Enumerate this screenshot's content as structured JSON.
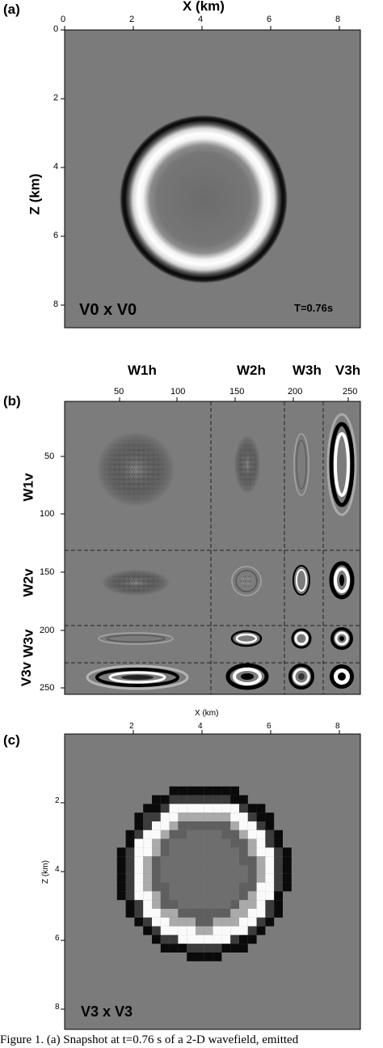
{
  "figure": {
    "panel_a": {
      "label": "(a)",
      "x_title": "X (km)",
      "z_title": "Z (km)",
      "x_ticks": [
        "0",
        "2",
        "4",
        "6",
        "8"
      ],
      "z_ticks": [
        "0",
        "2",
        "4",
        "6",
        "8"
      ],
      "corner_label": "V0 x V0",
      "time_label": "T=0.76s"
    },
    "panel_b": {
      "label": "(b)",
      "col_headers": [
        "W1h",
        "W2h",
        "W3h",
        "V3h"
      ],
      "row_headers": [
        "W1v",
        "W2v",
        "W3v",
        "V3v"
      ],
      "x_ticks": [
        "50",
        "100",
        "150",
        "200",
        "250"
      ],
      "y_ticks": [
        "50",
        "100",
        "150",
        "200",
        "250"
      ]
    },
    "panel_c": {
      "label": "(c)",
      "x_title": "X (km)",
      "z_title": "Z (km)",
      "x_ticks": [
        "2",
        "4",
        "6",
        "8"
      ],
      "z_ticks": [
        "2",
        "4",
        "6",
        "8"
      ],
      "corner_label": "V3 x V3"
    },
    "caption": "Figure 1. (a) Snapshot at t=0.76 s of a 2-D wavefield, emitted"
  },
  "colors": {
    "background_gray": "#7b7b7b",
    "ink": "#000000"
  }
}
